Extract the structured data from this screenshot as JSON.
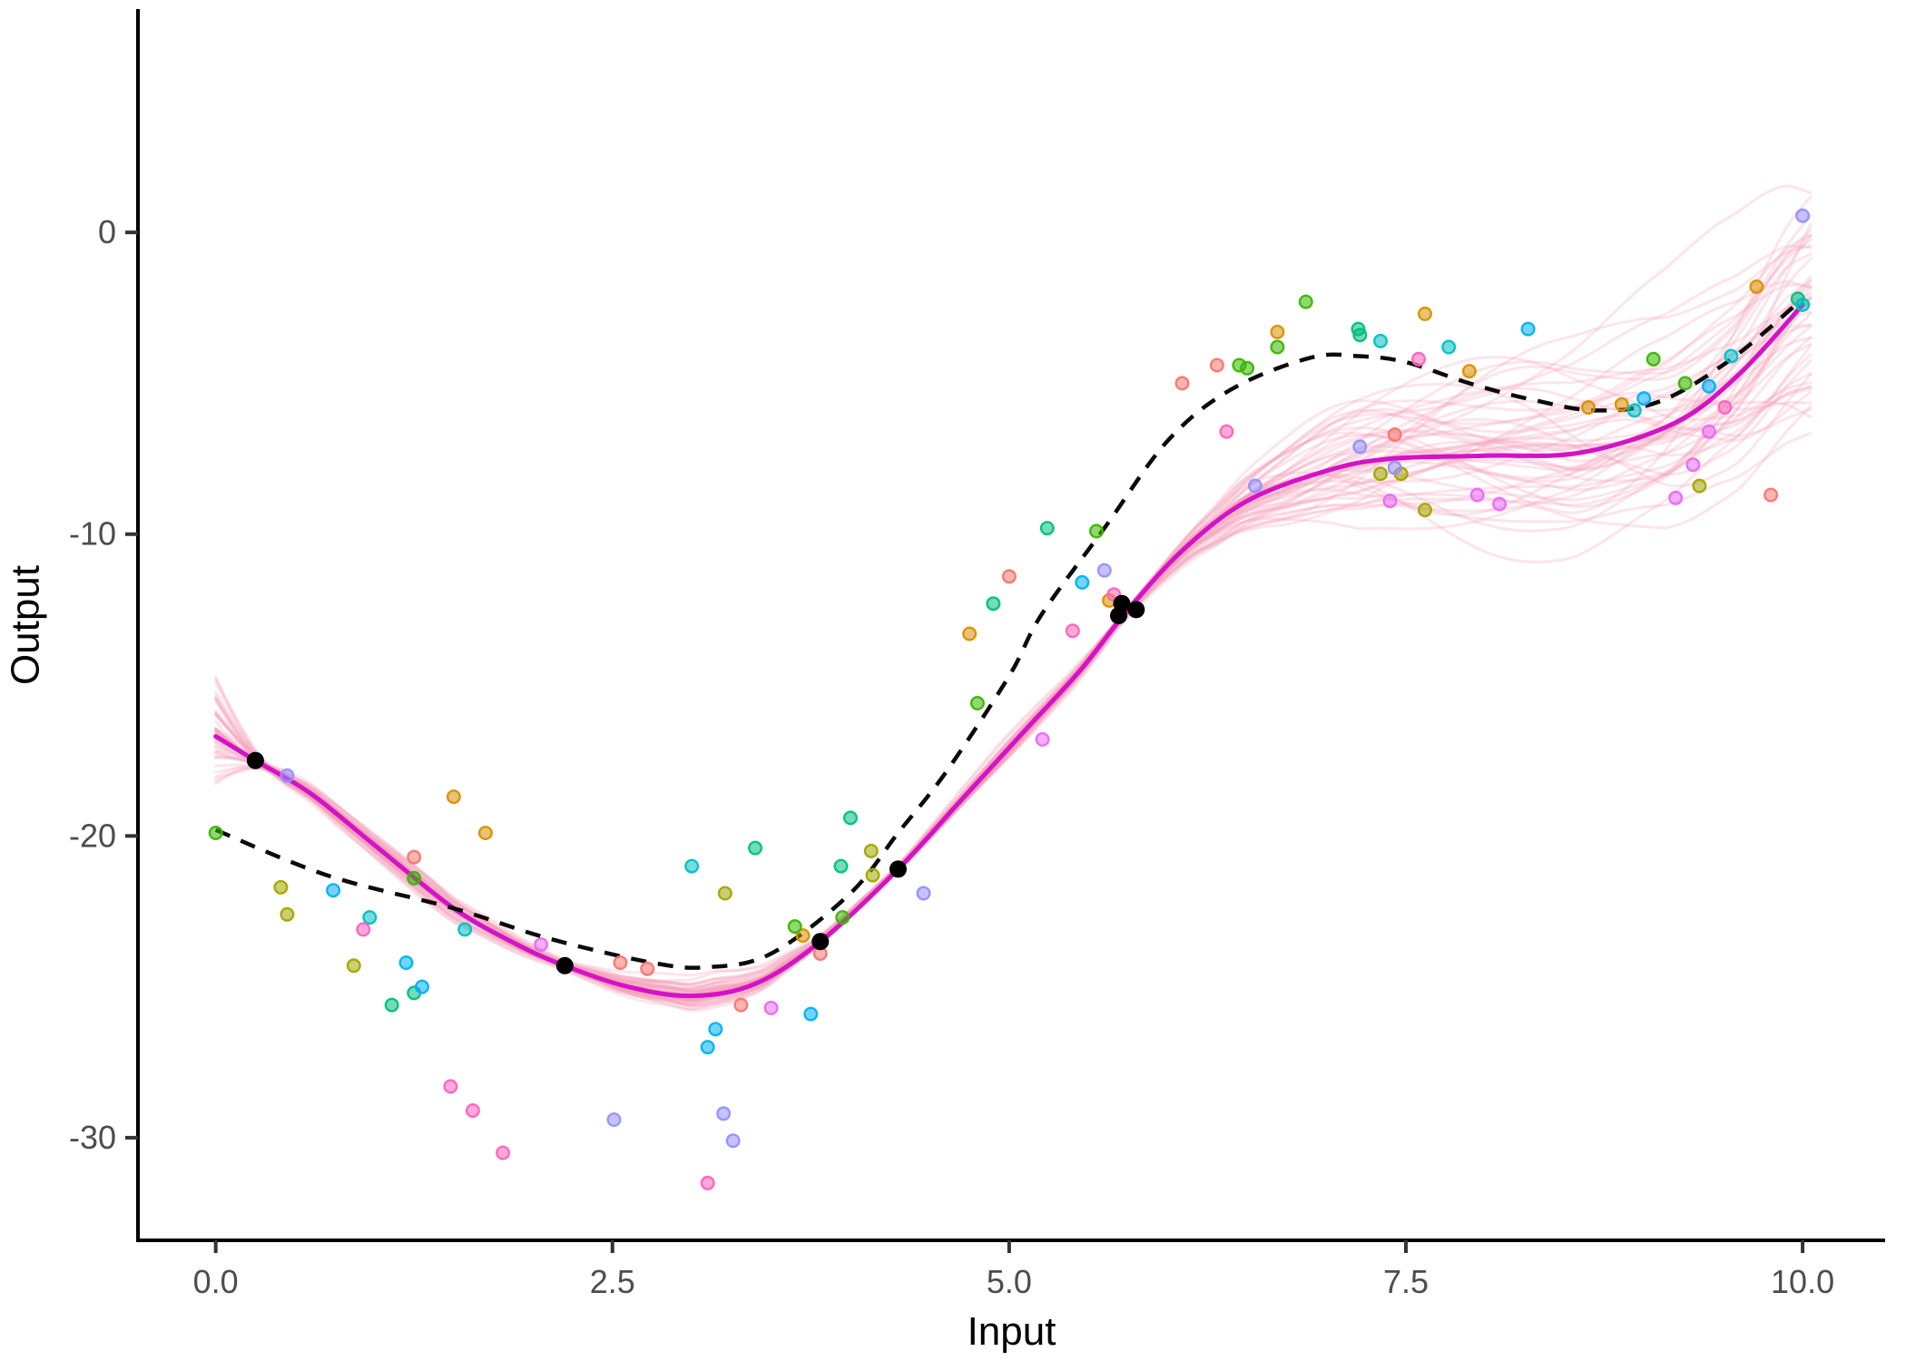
{
  "chart_data": {
    "type": "line",
    "title": "",
    "xlabel": "Input",
    "ylabel": "Output",
    "grid": false,
    "legend": "none",
    "xlim": [
      -0.49,
      10.52
    ],
    "ylim": [
      -33.4,
      7.4
    ],
    "x_ticks": [
      {
        "value": 0,
        "label": "0.0"
      },
      {
        "value": 2.5,
        "label": "2.5"
      },
      {
        "value": 5,
        "label": "5.0"
      },
      {
        "value": 7.5,
        "label": "7.5"
      },
      {
        "value": 10,
        "label": "10.0"
      }
    ],
    "y_ticks": [
      {
        "value": 0,
        "label": "0"
      },
      {
        "value": -10,
        "label": "-10"
      },
      {
        "value": -20,
        "label": "-20"
      },
      {
        "value": -30,
        "label": "-30"
      }
    ],
    "styles": {
      "axis_line_color": "#000000",
      "tick_label_color": "#4d4d4d",
      "tick_mark_color": "#333333",
      "mean_color": "#d412c6",
      "true_fn_color": "#0a0a0a",
      "sample_color": "#f4a0b9",
      "observed_color": "#000000"
    },
    "true_function": {
      "name": "true-function-dashed",
      "color": "#0a0a0a",
      "dash": [
        17,
        13
      ],
      "points": [
        [
          0,
          -19.8
        ],
        [
          0.7,
          -21.3
        ],
        [
          1.5,
          -22.4
        ],
        [
          2.1,
          -23.4
        ],
        [
          2.75,
          -24.2
        ],
        [
          3.1,
          -24.35
        ],
        [
          3.5,
          -23.9
        ],
        [
          4.0,
          -21.9
        ],
        [
          4.3,
          -19.9
        ],
        [
          4.6,
          -17.9
        ],
        [
          5.0,
          -14.7
        ],
        [
          5.2,
          -12.7
        ],
        [
          5.6,
          -9.8
        ],
        [
          6.0,
          -6.9
        ],
        [
          6.4,
          -5.2
        ],
        [
          6.9,
          -4.15
        ],
        [
          7.2,
          -4.1
        ],
        [
          7.5,
          -4.3
        ],
        [
          7.9,
          -5.0
        ],
        [
          8.3,
          -5.55
        ],
        [
          8.7,
          -5.9
        ],
        [
          9.1,
          -5.6
        ],
        [
          9.55,
          -4.2
        ],
        [
          10.0,
          -2.2
        ]
      ]
    },
    "posterior_mean": {
      "name": "posterior-mean",
      "color": "#d412c6",
      "points": [
        [
          0,
          -16.7
        ],
        [
          0.25,
          -17.5
        ],
        [
          0.6,
          -18.6
        ],
        [
          1.0,
          -20.3
        ],
        [
          1.5,
          -22.4
        ],
        [
          1.9,
          -23.6
        ],
        [
          2.2,
          -24.3
        ],
        [
          2.6,
          -25.0
        ],
        [
          3.0,
          -25.3
        ],
        [
          3.4,
          -24.9
        ],
        [
          3.81,
          -23.5
        ],
        [
          4.3,
          -21.1
        ],
        [
          4.7,
          -18.8
        ],
        [
          5.1,
          -16.5
        ],
        [
          5.45,
          -14.5
        ],
        [
          5.75,
          -12.5
        ],
        [
          6.1,
          -10.5
        ],
        [
          6.5,
          -8.9
        ],
        [
          7.0,
          -7.9
        ],
        [
          7.4,
          -7.5
        ],
        [
          8.0,
          -7.4
        ],
        [
          8.6,
          -7.3
        ],
        [
          9.2,
          -6.3
        ],
        [
          9.6,
          -4.7
        ],
        [
          10.0,
          -2.4
        ]
      ]
    },
    "posterior_samples": {
      "name": "posterior-sample-draws",
      "count": 50,
      "color": "#f4a0b9",
      "opacity": 0.27,
      "seed": 1337,
      "x_start": 0,
      "x_end": 10.05,
      "envelope_x": [
        0,
        0.25,
        0.7,
        1.3,
        2.2,
        2.7,
        3.1,
        3.8,
        4.3,
        5.0,
        5.45,
        5.75,
        6.1,
        6.6,
        7.2,
        8.0,
        8.8,
        9.5,
        10.05
      ],
      "envelope_s": [
        2.0,
        0.15,
        0.4,
        0.55,
        0.16,
        0.5,
        0.65,
        0.16,
        0.13,
        0.42,
        0.3,
        0.15,
        0.5,
        1.3,
        2.4,
        3.2,
        3.8,
        4.4,
        5.2
      ]
    },
    "observed_points": {
      "name": "observed-data",
      "color": "#000000",
      "radius": 9.5,
      "points": [
        [
          0.25,
          -17.5
        ],
        [
          2.2,
          -24.3
        ],
        [
          3.81,
          -23.5
        ],
        [
          4.3,
          -21.1
        ],
        [
          5.71,
          -12.3
        ],
        [
          5.8,
          -12.5
        ],
        [
          5.69,
          -12.7
        ]
      ]
    },
    "datasets": [
      {
        "name": "dataset-1",
        "color": "#F8766D",
        "points": [
          [
            1.25,
            -20.7
          ],
          [
            2.55,
            -24.2
          ],
          [
            2.72,
            -24.4
          ],
          [
            3.31,
            -25.6
          ],
          [
            3.81,
            -23.9
          ],
          [
            5.0,
            -11.4
          ],
          [
            6.09,
            -5.0
          ],
          [
            6.31,
            -4.4
          ],
          [
            7.43,
            -6.7
          ],
          [
            9.8,
            -8.7
          ]
        ]
      },
      {
        "name": "dataset-2",
        "color": "#D89000",
        "points": [
          [
            1.5,
            -18.7
          ],
          [
            1.7,
            -19.9
          ],
          [
            3.7,
            -23.3
          ],
          [
            4.75,
            -13.3
          ],
          [
            5.63,
            -12.2
          ],
          [
            6.69,
            -3.3
          ],
          [
            7.62,
            -2.7
          ],
          [
            7.9,
            -4.6
          ],
          [
            8.65,
            -5.8
          ],
          [
            8.86,
            -5.7
          ],
          [
            9.71,
            -1.8
          ]
        ]
      },
      {
        "name": "dataset-3",
        "color": "#A3A500",
        "points": [
          [
            0.41,
            -21.7
          ],
          [
            0.45,
            -22.6
          ],
          [
            0.87,
            -24.3
          ],
          [
            3.21,
            -21.9
          ],
          [
            4.13,
            -20.5
          ],
          [
            4.14,
            -21.3
          ],
          [
            7.34,
            -8.0
          ],
          [
            7.47,
            -8.0
          ],
          [
            7.62,
            -9.2
          ],
          [
            9.35,
            -8.4
          ]
        ]
      },
      {
        "name": "dataset-4",
        "color": "#39B600",
        "points": [
          [
            0.0,
            -19.9
          ],
          [
            1.25,
            -21.4
          ],
          [
            3.65,
            -23.0
          ],
          [
            3.95,
            -22.7
          ],
          [
            4.8,
            -15.6
          ],
          [
            5.55,
            -9.9
          ],
          [
            6.45,
            -4.4
          ],
          [
            6.5,
            -4.5
          ],
          [
            6.69,
            -3.8
          ],
          [
            6.87,
            -2.3
          ],
          [
            9.06,
            -4.2
          ],
          [
            9.26,
            -5.0
          ]
        ]
      },
      {
        "name": "dataset-5",
        "color": "#00BF7D",
        "points": [
          [
            1.11,
            -25.6
          ],
          [
            1.25,
            -25.2
          ],
          [
            3.4,
            -20.4
          ],
          [
            3.94,
            -21.0
          ],
          [
            4.0,
            -19.4
          ],
          [
            4.9,
            -12.3
          ],
          [
            5.24,
            -9.8
          ],
          [
            7.2,
            -3.2
          ],
          [
            7.21,
            -3.4
          ],
          [
            9.97,
            -2.2
          ]
        ]
      },
      {
        "name": "dataset-6",
        "color": "#00BFC4",
        "points": [
          [
            0.97,
            -22.7
          ],
          [
            1.57,
            -23.1
          ],
          [
            3.0,
            -21.0
          ],
          [
            7.34,
            -3.6
          ],
          [
            7.77,
            -3.8
          ],
          [
            8.94,
            -5.9
          ],
          [
            9.55,
            -4.1
          ],
          [
            10.0,
            -2.4
          ]
        ]
      },
      {
        "name": "dataset-7",
        "color": "#00B0F6",
        "points": [
          [
            0.74,
            -21.8
          ],
          [
            1.2,
            -24.2
          ],
          [
            1.3,
            -25.0
          ],
          [
            3.1,
            -27.0
          ],
          [
            3.15,
            -26.4
          ],
          [
            3.75,
            -25.9
          ],
          [
            5.46,
            -11.6
          ],
          [
            8.27,
            -3.2
          ],
          [
            9.0,
            -5.5
          ],
          [
            9.41,
            -5.1
          ]
        ]
      },
      {
        "name": "dataset-8",
        "color": "#9590FF",
        "points": [
          [
            0.45,
            -18.0
          ],
          [
            2.51,
            -29.4
          ],
          [
            3.2,
            -29.2
          ],
          [
            3.26,
            -30.1
          ],
          [
            4.46,
            -21.9
          ],
          [
            5.6,
            -11.2
          ],
          [
            6.55,
            -8.4
          ],
          [
            7.21,
            -7.1
          ],
          [
            7.43,
            -7.8
          ],
          [
            10.0,
            0.55
          ]
        ]
      },
      {
        "name": "dataset-9",
        "color": "#E76BF3",
        "points": [
          [
            2.05,
            -23.6
          ],
          [
            3.5,
            -25.7
          ],
          [
            5.21,
            -16.8
          ],
          [
            7.4,
            -8.9
          ],
          [
            7.95,
            -8.7
          ],
          [
            8.09,
            -9.0
          ],
          [
            9.2,
            -8.8
          ],
          [
            9.31,
            -7.7
          ],
          [
            9.41,
            -6.6
          ]
        ]
      },
      {
        "name": "dataset-10",
        "color": "#FF62BC",
        "points": [
          [
            0.93,
            -23.1
          ],
          [
            1.48,
            -28.3
          ],
          [
            1.62,
            -29.1
          ],
          [
            1.81,
            -30.5
          ],
          [
            3.1,
            -31.5
          ],
          [
            5.4,
            -13.2
          ],
          [
            5.66,
            -12.0
          ],
          [
            6.37,
            -6.6
          ],
          [
            7.58,
            -4.2
          ],
          [
            9.51,
            -5.8
          ]
        ]
      }
    ],
    "point_radius": 6.8
  }
}
